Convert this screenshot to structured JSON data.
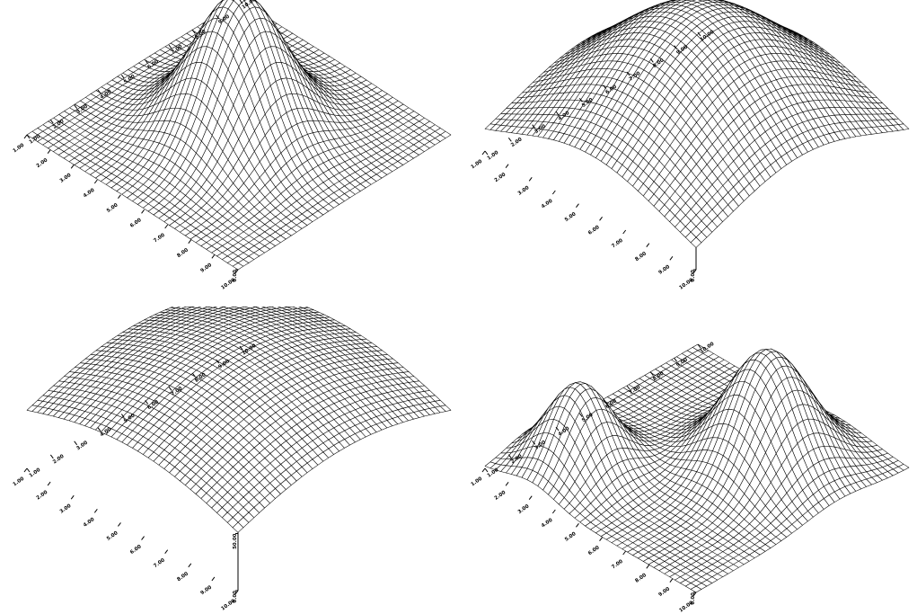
{
  "chart_data": [
    {
      "type": "surface",
      "surface": "single-peak",
      "x_ticks": [
        "1.00",
        "2.00",
        "3.00",
        "4.00",
        "5.00",
        "6.00",
        "7.00",
        "8.00",
        "9.00",
        "10.00"
      ],
      "y_ticks": [
        "10.00",
        "9.00",
        "8.00",
        "7.00",
        "6.00",
        "5.00",
        "4.00",
        "3.00",
        "2.00",
        "1.00"
      ],
      "z_ticks": [
        "0.00",
        "50.00"
      ],
      "xlim": [
        1,
        10
      ],
      "ylim": [
        1,
        10
      ],
      "zlim": [
        0,
        100
      ],
      "grid_resolution": 40
    },
    {
      "type": "surface",
      "surface": "broad-dome",
      "x_ticks": [
        "1.00",
        "2.00",
        "3.00",
        "4.00",
        "5.00",
        "6.00",
        "7.00",
        "8.00",
        "9.00",
        "10.00"
      ],
      "y_ticks": [
        "10.00",
        "9.00",
        "8.00",
        "7.00",
        "6.00",
        "5.00",
        "4.00",
        "3.00",
        "2.00",
        "1.00"
      ],
      "z_ticks": [
        "0.00",
        "50.00",
        "100.00"
      ],
      "xlim": [
        1,
        10
      ],
      "ylim": [
        1,
        10
      ],
      "zlim": [
        0,
        100
      ],
      "grid_resolution": 40
    },
    {
      "type": "surface",
      "surface": "wide-dome",
      "x_ticks": [
        "1.00",
        "2.00",
        "3.00",
        "4.00",
        "5.00",
        "6.00",
        "7.00",
        "8.00",
        "9.00",
        "10.00"
      ],
      "y_ticks": [
        "10.00",
        "9.00",
        "8.00",
        "7.00",
        "6.00",
        "5.00",
        "4.00",
        "3.00",
        "2.00",
        "1.00"
      ],
      "z_ticks": [
        "0.00",
        "50.00",
        "100.00"
      ],
      "xlim": [
        1,
        10
      ],
      "ylim": [
        1,
        10
      ],
      "zlim": [
        0,
        100
      ],
      "grid_resolution": 40
    },
    {
      "type": "surface",
      "surface": "double-peak",
      "x_ticks": [
        "1.00",
        "2.00",
        "3.00",
        "4.00",
        "5.00",
        "6.00",
        "7.00",
        "8.00",
        "9.00",
        "10.00"
      ],
      "y_ticks": [
        "10.00",
        "9.00",
        "8.00",
        "7.00",
        "6.00",
        "5.00",
        "4.00",
        "3.00",
        "2.00",
        "1.00"
      ],
      "z_ticks": [
        "0.00",
        "50.00",
        "100.00"
      ],
      "xlim": [
        1,
        10
      ],
      "ylim": [
        1,
        10
      ],
      "zlim": [
        0,
        100
      ],
      "grid_resolution": 40
    }
  ]
}
